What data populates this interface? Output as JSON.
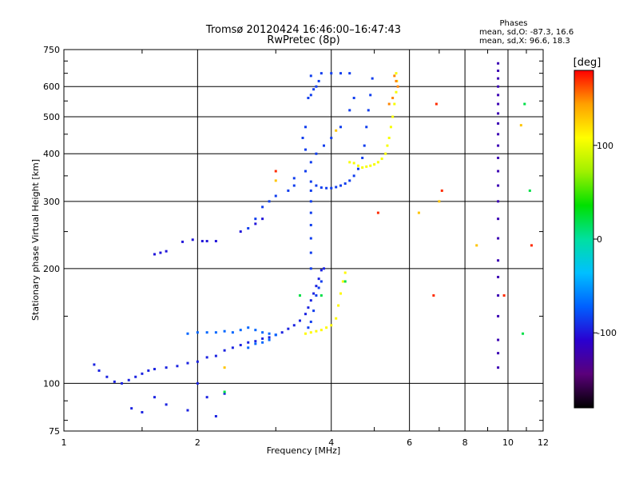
{
  "chart_data": {
    "type": "scatter",
    "title": "Tromsø 20120424 16:46:00–16:47:43",
    "subtitle": "RwPretec (8p)",
    "xlabel": "Frequency [MHz]",
    "ylabel": "Stationary phase Virtual Height [km]",
    "x_scale": "log",
    "y_scale": "log",
    "xlim": [
      1,
      12
    ],
    "ylim": [
      75,
      750
    ],
    "x_ticks": [
      1,
      2,
      4,
      6,
      8,
      10,
      12
    ],
    "y_ticks": [
      75,
      100,
      200,
      300,
      400,
      500,
      600,
      750
    ],
    "grid": true,
    "phases_box": {
      "title": "Phases",
      "line1": "mean, sd,O:  -87.3,  16.6",
      "line2": "mean, sd,X:   96.6,  18.3"
    },
    "colorbar": {
      "label": "[deg]",
      "min": -180,
      "max": 180,
      "ticks": [
        100,
        0,
        -100
      ],
      "colors": [
        "#000000",
        "#5a007a",
        "#2a00d0",
        "#0060ff",
        "#00c0ff",
        "#00e0a0",
        "#00e000",
        "#a0f000",
        "#ffff00",
        "#ffa000",
        "#ff0000"
      ]
    },
    "series": [
      {
        "phase": -95,
        "points": [
          [
            1.17,
            112
          ],
          [
            1.2,
            108
          ],
          [
            1.25,
            104
          ],
          [
            1.3,
            101
          ],
          [
            1.35,
            100
          ],
          [
            1.4,
            102
          ],
          [
            1.45,
            104
          ],
          [
            1.5,
            106
          ],
          [
            1.55,
            108
          ],
          [
            1.6,
            109
          ],
          [
            1.7,
            110
          ],
          [
            1.8,
            111
          ],
          [
            1.9,
            113
          ],
          [
            2.0,
            114
          ],
          [
            2.1,
            117
          ],
          [
            2.2,
            118
          ],
          [
            2.3,
            122
          ],
          [
            2.4,
            124
          ],
          [
            2.5,
            126
          ],
          [
            2.6,
            128
          ],
          [
            2.7,
            129
          ],
          [
            2.8,
            131
          ],
          [
            2.9,
            132
          ],
          [
            3.0,
            134
          ],
          [
            3.1,
            136
          ],
          [
            3.2,
            139
          ],
          [
            3.3,
            142
          ],
          [
            3.4,
            146
          ],
          [
            3.5,
            152
          ],
          [
            3.55,
            158
          ],
          [
            3.6,
            165
          ],
          [
            3.65,
            172
          ],
          [
            3.7,
            180
          ],
          [
            3.75,
            188
          ],
          [
            3.8,
            198
          ],
          [
            3.85,
            200
          ],
          [
            2.0,
            100
          ],
          [
            2.1,
            92
          ],
          [
            1.6,
            92
          ],
          [
            1.5,
            84
          ],
          [
            1.42,
            86
          ],
          [
            1.7,
            88
          ],
          [
            2.3,
            94
          ],
          [
            2.2,
            82
          ],
          [
            1.9,
            85
          ]
        ]
      },
      {
        "phase": -85,
        "points": [
          [
            3.55,
            140
          ],
          [
            3.6,
            145
          ],
          [
            3.65,
            155
          ],
          [
            3.7,
            170
          ],
          [
            3.75,
            178
          ],
          [
            3.8,
            185
          ],
          [
            3.6,
            200
          ],
          [
            3.6,
            220
          ],
          [
            3.6,
            240
          ],
          [
            3.6,
            260
          ],
          [
            3.6,
            280
          ],
          [
            3.6,
            300
          ],
          [
            3.6,
            320
          ],
          [
            3.6,
            338
          ],
          [
            3.7,
            330
          ],
          [
            3.8,
            326
          ],
          [
            3.9,
            325
          ],
          [
            4.0,
            325
          ],
          [
            4.1,
            327
          ],
          [
            4.2,
            330
          ],
          [
            4.3,
            334
          ],
          [
            4.4,
            340
          ],
          [
            4.5,
            350
          ],
          [
            4.6,
            365
          ],
          [
            4.7,
            390
          ],
          [
            4.75,
            420
          ],
          [
            4.8,
            470
          ],
          [
            4.85,
            520
          ],
          [
            4.9,
            570
          ],
          [
            4.95,
            630
          ],
          [
            3.3,
            330
          ],
          [
            3.2,
            320
          ],
          [
            3.0,
            310
          ],
          [
            2.9,
            300
          ],
          [
            2.8,
            290
          ],
          [
            2.7,
            270
          ],
          [
            2.6,
            255
          ],
          [
            3.3,
            345
          ],
          [
            3.5,
            360
          ],
          [
            3.6,
            380
          ],
          [
            3.7,
            400
          ],
          [
            3.85,
            420
          ],
          [
            4.0,
            440
          ],
          [
            4.2,
            470
          ],
          [
            4.4,
            520
          ],
          [
            4.5,
            560
          ],
          [
            3.55,
            560
          ],
          [
            3.6,
            570
          ],
          [
            3.65,
            590
          ],
          [
            3.7,
            600
          ],
          [
            3.75,
            620
          ],
          [
            3.8,
            650
          ],
          [
            4.0,
            650
          ],
          [
            4.2,
            650
          ],
          [
            4.4,
            650
          ],
          [
            3.6,
            640
          ],
          [
            3.5,
            410
          ],
          [
            3.45,
            440
          ],
          [
            3.5,
            470
          ]
        ]
      },
      {
        "phase": -100,
        "points": [
          [
            1.6,
            218
          ],
          [
            1.65,
            220
          ],
          [
            1.7,
            222
          ],
          [
            1.85,
            235
          ],
          [
            1.95,
            238
          ],
          [
            2.05,
            236
          ],
          [
            2.1,
            236
          ],
          [
            2.2,
            236
          ],
          [
            2.5,
            250
          ],
          [
            2.7,
            262
          ],
          [
            2.8,
            270
          ]
        ]
      },
      {
        "phase": -70,
        "points": [
          [
            1.9,
            135
          ],
          [
            2.0,
            136
          ],
          [
            2.1,
            136
          ],
          [
            2.2,
            136
          ],
          [
            2.3,
            137
          ],
          [
            2.4,
            136
          ],
          [
            2.5,
            138
          ],
          [
            2.6,
            140
          ],
          [
            2.7,
            138
          ],
          [
            2.8,
            136
          ],
          [
            2.9,
            135
          ],
          [
            3.0,
            134
          ],
          [
            2.6,
            124
          ],
          [
            2.7,
            127
          ],
          [
            2.8,
            128
          ],
          [
            2.9,
            130
          ]
        ]
      },
      {
        "phase": 110,
        "points": [
          [
            3.5,
            135
          ],
          [
            3.6,
            136
          ],
          [
            3.7,
            137
          ],
          [
            3.8,
            138
          ],
          [
            3.9,
            140
          ],
          [
            4.0,
            142
          ],
          [
            4.1,
            148
          ],
          [
            4.15,
            160
          ],
          [
            4.2,
            172
          ],
          [
            4.25,
            185
          ],
          [
            4.3,
            195
          ]
        ]
      },
      {
        "phase": 105,
        "points": [
          [
            4.4,
            380
          ],
          [
            4.5,
            378
          ],
          [
            4.6,
            372
          ],
          [
            4.7,
            368
          ],
          [
            4.8,
            370
          ],
          [
            4.9,
            372
          ],
          [
            5.0,
            375
          ],
          [
            5.1,
            380
          ],
          [
            5.2,
            388
          ],
          [
            5.3,
            400
          ],
          [
            5.35,
            420
          ],
          [
            5.4,
            440
          ],
          [
            5.45,
            470
          ],
          [
            5.5,
            500
          ],
          [
            5.55,
            540
          ],
          [
            5.6,
            580
          ],
          [
            5.62,
            620
          ],
          [
            5.6,
            650
          ]
        ]
      },
      {
        "phase": 150,
        "points": [
          [
            5.55,
            640
          ],
          [
            5.6,
            620
          ],
          [
            5.65,
            600
          ],
          [
            5.5,
            560
          ],
          [
            5.4,
            540
          ]
        ]
      },
      {
        "phase": -120,
        "points": [
          [
            9.5,
            150
          ],
          [
            9.5,
            170
          ],
          [
            9.5,
            190
          ],
          [
            9.5,
            210
          ],
          [
            9.5,
            240
          ],
          [
            9.5,
            270
          ],
          [
            9.5,
            300
          ],
          [
            9.5,
            330
          ],
          [
            9.5,
            360
          ],
          [
            9.5,
            390
          ],
          [
            9.5,
            420
          ],
          [
            9.5,
            450
          ],
          [
            9.5,
            480
          ],
          [
            9.5,
            510
          ],
          [
            9.5,
            540
          ],
          [
            9.5,
            570
          ],
          [
            9.5,
            600
          ],
          [
            9.5,
            630
          ],
          [
            9.5,
            660
          ],
          [
            9.5,
            690
          ],
          [
            9.5,
            120
          ],
          [
            9.5,
            110
          ],
          [
            9.5,
            130
          ]
        ]
      },
      {
        "phase": 20,
        "points": [
          [
            3.4,
            170
          ],
          [
            2.3,
            95
          ],
          [
            3.8,
            170
          ],
          [
            4.3,
            185
          ],
          [
            10.8,
            135
          ],
          [
            11.2,
            320
          ],
          [
            10.9,
            540
          ]
        ]
      },
      {
        "phase": 130,
        "points": [
          [
            6.3,
            280
          ],
          [
            7.0,
            300
          ],
          [
            8.5,
            230
          ],
          [
            10.7,
            475
          ],
          [
            4.1,
            460
          ],
          [
            2.3,
            110
          ],
          [
            3.0,
            340
          ]
        ]
      },
      {
        "phase": 170,
        "points": [
          [
            6.8,
            170
          ],
          [
            6.9,
            540
          ],
          [
            7.1,
            320
          ],
          [
            9.8,
            170
          ],
          [
            11.3,
            230
          ],
          [
            3.0,
            360
          ],
          [
            5.1,
            280
          ]
        ]
      }
    ]
  }
}
